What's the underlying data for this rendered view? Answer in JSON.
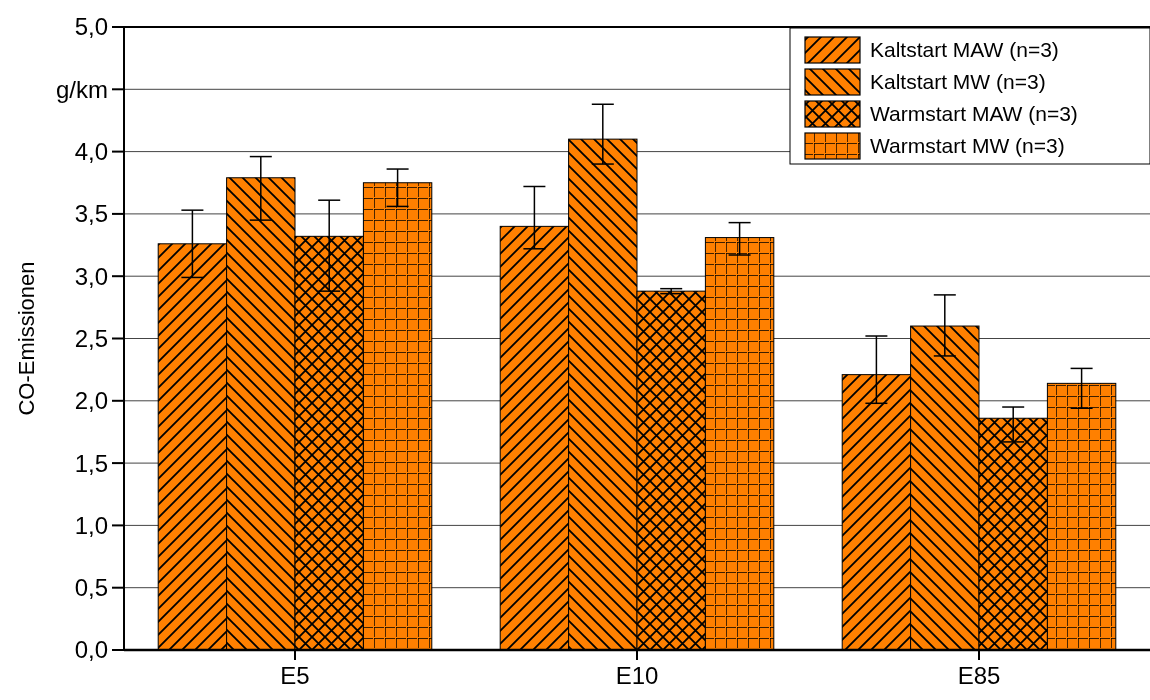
{
  "chart_data": {
    "type": "bar",
    "ylabel": "CO-Emissionen",
    "categories": [
      "E5",
      "E10",
      "E85"
    ],
    "series": [
      {
        "name": "Kaltstart MAW (n=3)",
        "color": "#ff8000",
        "values": [
          3.26,
          3.4,
          2.21
        ],
        "errors": [
          [
            2.99,
            3.53
          ],
          [
            3.22,
            3.72
          ],
          [
            1.98,
            2.52
          ]
        ]
      },
      {
        "name": "Kaltstart MW (n=3)",
        "color": "#ff8000",
        "values": [
          3.79,
          4.1,
          2.6
        ],
        "errors": [
          [
            3.45,
            3.96
          ],
          [
            3.9,
            4.38
          ],
          [
            2.36,
            2.85
          ]
        ]
      },
      {
        "name": "Warmstart MAW (n=3)",
        "color": "#ff8000",
        "values": [
          3.32,
          2.88,
          1.86
        ],
        "errors": [
          [
            2.88,
            3.61
          ],
          [
            2.86,
            2.9
          ],
          [
            1.67,
            1.95
          ]
        ]
      },
      {
        "name": "Warmstart MW (n=3)",
        "color": "#ff8000",
        "values": [
          3.75,
          3.31,
          2.14
        ],
        "errors": [
          [
            3.56,
            3.86
          ],
          [
            3.17,
            3.43
          ],
          [
            1.94,
            2.26
          ]
        ]
      }
    ],
    "ylim": [
      0,
      5
    ],
    "yticks": [
      {
        "value": 0,
        "label": "0,0"
      },
      {
        "value": 0.5,
        "label": "0,5"
      },
      {
        "value": 1,
        "label": "1,0"
      },
      {
        "value": 1.5,
        "label": "1,5"
      },
      {
        "value": 2,
        "label": "2,0"
      },
      {
        "value": 2.5,
        "label": "2,5"
      },
      {
        "value": 3,
        "label": "3,0"
      },
      {
        "value": 3.5,
        "label": "3,5"
      },
      {
        "value": 4,
        "label": "4,0"
      },
      {
        "value": 4.5,
        "label": "g/km"
      },
      {
        "value": 5,
        "label": "5,0"
      }
    ],
    "grid": "y",
    "legend": "top right"
  }
}
